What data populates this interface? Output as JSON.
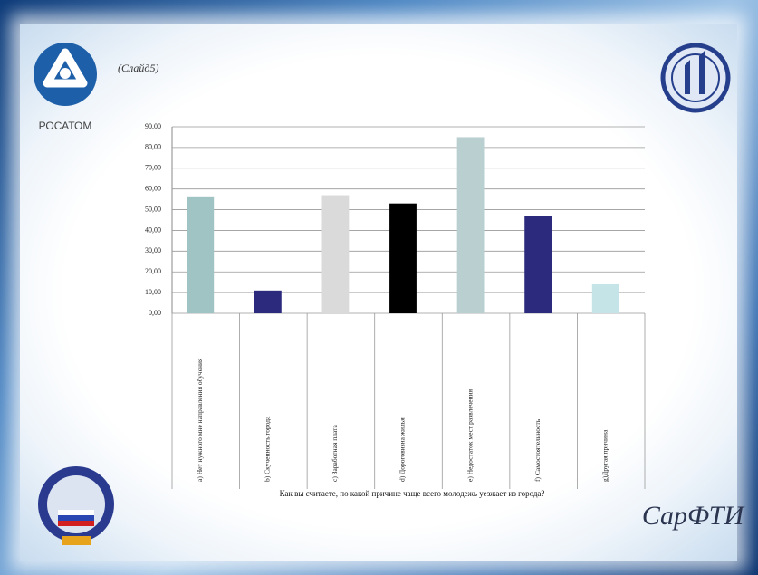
{
  "slide_label": "(Слайд5)",
  "logo_top_left": "РОСАТОМ",
  "logo_bottom_right": "СарФТИ",
  "chart_data": {
    "type": "bar",
    "x_label": "Как вы считаете, по какой причине чаще всего молодежь уезжает из города?",
    "categories": [
      "a)   Нет нужного мне направления обучения",
      "b)   Скученность города",
      "c)   Заработная плата",
      "d)   Дороговизна жилья",
      "e)   Недостаток мест развлечения",
      "f)   Самостоятельность",
      "g)Другая причина"
    ],
    "values": [
      56,
      11,
      57,
      53,
      85,
      47,
      14
    ],
    "colors": [
      "#9fc4c3",
      "#2c2a7c",
      "#dadada",
      "#000000",
      "#b9cfd0",
      "#2c2a7c",
      "#c4e4e7"
    ],
    "ylim": [
      0,
      90
    ],
    "yticks": [
      {
        "value": 0,
        "label": "0,00"
      },
      {
        "value": 10,
        "label": "10,00"
      },
      {
        "value": 20,
        "label": "20,00"
      },
      {
        "value": 30,
        "label": "30,00"
      },
      {
        "value": 40,
        "label": "40,00"
      },
      {
        "value": 50,
        "label": "50,00"
      },
      {
        "value": 60,
        "label": "60,00"
      },
      {
        "value": 70,
        "label": "70,00"
      },
      {
        "value": 80,
        "label": "80,00"
      },
      {
        "value": 90,
        "label": "90,00"
      }
    ],
    "grid": true
  }
}
